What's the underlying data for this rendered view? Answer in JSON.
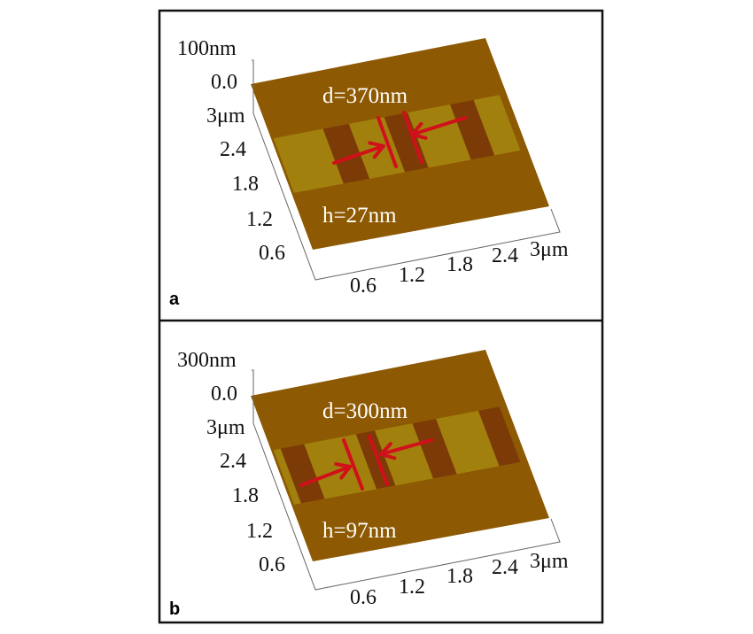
{
  "panels": [
    {
      "label": "a",
      "z_max": "100nm",
      "z_min": "0.0",
      "y_ticks": [
        "3μm",
        "2.4",
        "1.8",
        "1.2",
        "0.6"
      ],
      "x_ticks": [
        "0.6",
        "1.2",
        "1.8",
        "2.4",
        "3μm"
      ],
      "spacing_annotation": "d=370nm",
      "height_annotation": "h=27nm"
    },
    {
      "label": "b",
      "z_max": "300nm",
      "z_min": "0.0",
      "y_ticks": [
        "3μm",
        "2.4",
        "1.8",
        "1.2",
        "0.6"
      ],
      "x_ticks": [
        "0.6",
        "1.2",
        "1.8",
        "2.4",
        "3μm"
      ],
      "spacing_annotation": "d=300nm",
      "height_annotation": "h=97nm"
    }
  ],
  "colors": {
    "substrate": "#8d5902",
    "groove_light": "#a2800e",
    "groove_dark": "#7c3a06",
    "marker": "#d0101a"
  }
}
